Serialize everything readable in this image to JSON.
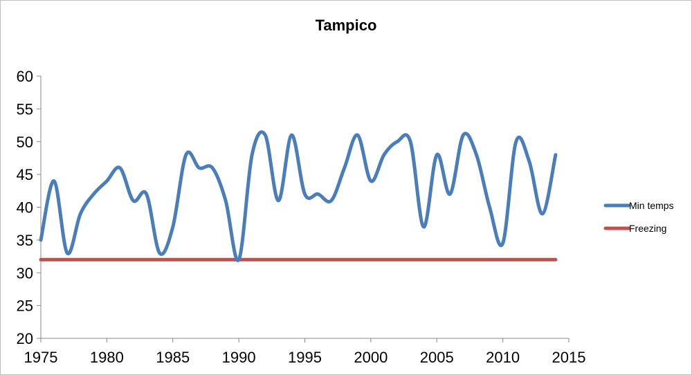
{
  "chart_data": {
    "type": "line",
    "title": "Tampico",
    "xlabel": "",
    "ylabel": "",
    "xlim": [
      1975,
      2015
    ],
    "ylim": [
      20,
      60
    ],
    "x_ticks": [
      1975,
      1980,
      1985,
      1990,
      1995,
      2000,
      2005,
      2010,
      2015
    ],
    "y_ticks": [
      20,
      25,
      30,
      35,
      40,
      45,
      50,
      55,
      60
    ],
    "grid": false,
    "legend_position": "right",
    "series": [
      {
        "name": "Min temps",
        "color": "#4a7ebb",
        "points": [
          [
            1975,
            35
          ],
          [
            1976,
            44
          ],
          [
            1977,
            33
          ],
          [
            1978,
            39
          ],
          [
            1979,
            42
          ],
          [
            1980,
            44
          ],
          [
            1981,
            46
          ],
          [
            1982,
            41
          ],
          [
            1983,
            42
          ],
          [
            1984,
            33
          ],
          [
            1985,
            37
          ],
          [
            1986,
            48
          ],
          [
            1987,
            46
          ],
          [
            1988,
            46
          ],
          [
            1989,
            41
          ],
          [
            1990,
            32
          ],
          [
            1991,
            48
          ],
          [
            1992,
            51
          ],
          [
            1993,
            41
          ],
          [
            1994,
            51
          ],
          [
            1995,
            42
          ],
          [
            1996,
            42
          ],
          [
            1997,
            41
          ],
          [
            1998,
            46
          ],
          [
            1999,
            51
          ],
          [
            2000,
            44
          ],
          [
            2001,
            48
          ],
          [
            2002,
            50
          ],
          [
            2003,
            50
          ],
          [
            2004,
            37
          ],
          [
            2005,
            48
          ],
          [
            2006,
            42
          ],
          [
            2007,
            51
          ],
          [
            2008,
            48
          ],
          [
            2009,
            40
          ],
          [
            2010,
            34.5
          ],
          [
            2011,
            50
          ],
          [
            2012,
            47
          ],
          [
            2013,
            39
          ],
          [
            2014,
            48
          ]
        ]
      },
      {
        "name": "Freezing",
        "color": "#c0504d",
        "points": [
          [
            1975,
            32
          ],
          [
            2014,
            32
          ]
        ]
      }
    ]
  }
}
